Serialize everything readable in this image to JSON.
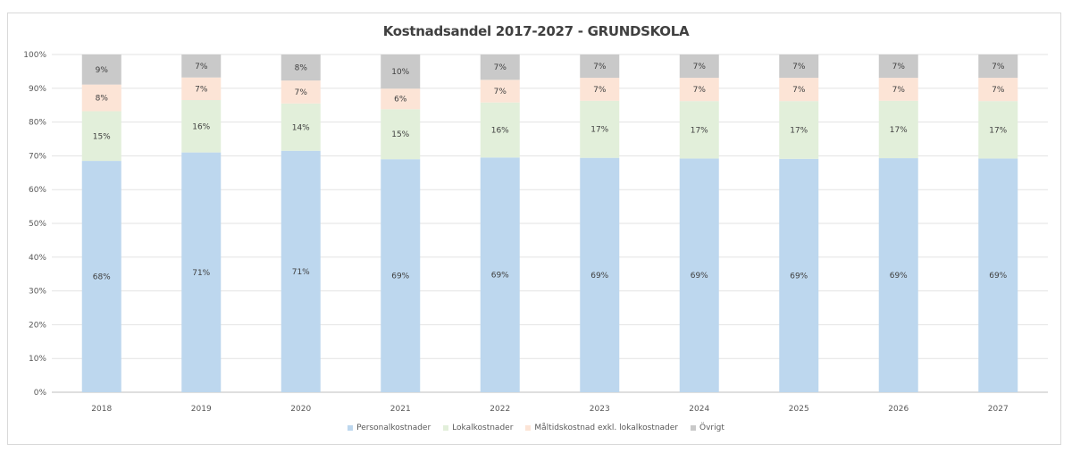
{
  "chart_data": {
    "type": "bar",
    "stacked": true,
    "title": "Kostnadsandel 2017-2027 - GRUNDSKOLA",
    "categories": [
      "2018",
      "2019",
      "2020",
      "2021",
      "2022",
      "2023",
      "2024",
      "2025",
      "2026",
      "2027"
    ],
    "ylim": [
      0,
      100
    ],
    "yticks": [
      "0%",
      "10%",
      "20%",
      "30%",
      "40%",
      "50%",
      "60%",
      "70%",
      "80%",
      "90%",
      "100%"
    ],
    "grid": true,
    "legend_position": "bottom",
    "series": [
      {
        "name": "Personalkostnader",
        "color": "#bdd7ee",
        "values": [
          68.5,
          71,
          71.5,
          69,
          69.5,
          69.4,
          69.2,
          69.1,
          69.3,
          69.2
        ],
        "labels": [
          "68%",
          "71%",
          "71%",
          "69%",
          "69%",
          "69%",
          "69%",
          "69%",
          "69%",
          "69%"
        ]
      },
      {
        "name": "Lokalkostnader",
        "color": "#e2efda",
        "values": [
          14.7,
          15.5,
          14,
          14.8,
          16.3,
          16.9,
          17,
          17.1,
          17,
          17
        ],
        "labels": [
          "15%",
          "16%",
          "14%",
          "15%",
          "16%",
          "17%",
          "17%",
          "17%",
          "17%",
          "17%"
        ]
      },
      {
        "name": "Måltidskostnad exkl. lokalkostnader",
        "color": "#fce4d6",
        "values": [
          7.9,
          6.7,
          6.8,
          6.1,
          6.7,
          6.8,
          6.9,
          6.9,
          6.8,
          6.9
        ],
        "labels": [
          "8%",
          "7%",
          "7%",
          "6%",
          "7%",
          "7%",
          "7%",
          "7%",
          "7%",
          "7%"
        ]
      },
      {
        "name": "Övrigt",
        "color": "#c9c9c9",
        "values": [
          8.9,
          6.8,
          7.7,
          10.1,
          7.5,
          6.9,
          6.9,
          6.9,
          6.9,
          6.9
        ],
        "labels": [
          "9%",
          "7%",
          "8%",
          "10%",
          "7%",
          "7%",
          "7%",
          "7%",
          "7%",
          "7%"
        ]
      }
    ]
  }
}
